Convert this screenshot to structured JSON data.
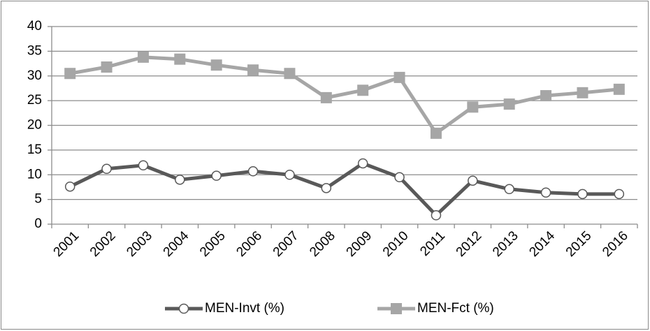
{
  "chart_data": {
    "type": "line",
    "categories": [
      "2001",
      "2002",
      "2003",
      "2004",
      "2005",
      "2006",
      "2007",
      "2008",
      "2009",
      "2010",
      "2011",
      "2012",
      "2013",
      "2014",
      "2015",
      "2016"
    ],
    "series": [
      {
        "name": "MEN-Invt (%)",
        "color": "#595959",
        "marker": "circle",
        "values": [
          7.6,
          11.2,
          11.9,
          9.0,
          9.8,
          10.7,
          10.0,
          7.3,
          12.3,
          9.5,
          1.8,
          8.8,
          7.1,
          6.4,
          6.1,
          6.1
        ]
      },
      {
        "name": "MEN-Fct (%)",
        "color": "#a6a6a6",
        "marker": "square",
        "values": [
          30.5,
          31.8,
          33.8,
          33.4,
          32.2,
          31.2,
          30.5,
          25.6,
          27.1,
          29.7,
          18.4,
          23.7,
          24.3,
          26.0,
          26.6,
          27.3
        ]
      }
    ],
    "ylim": [
      0,
      40
    ],
    "yticks": [
      0,
      5,
      10,
      15,
      20,
      25,
      30,
      35,
      40
    ],
    "grid": true,
    "legend": "bottom"
  }
}
